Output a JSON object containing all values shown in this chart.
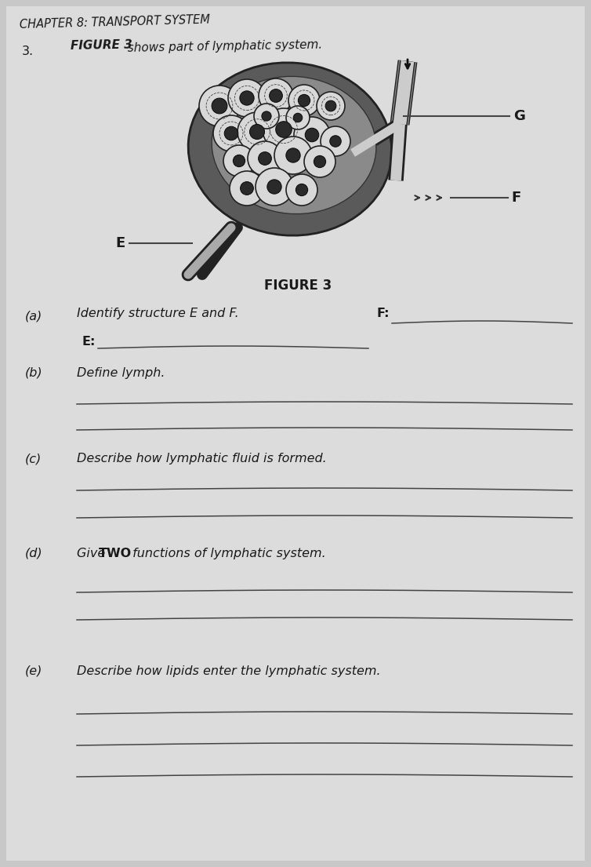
{
  "bg_color": "#c8c8c8",
  "page_bg": "#dcdcdc",
  "chapter_title": "CHAPTER 8: TRANSPORT SYSTEM",
  "question_num": "3.",
  "figure_intro_bold": "FIGURE 3",
  "figure_intro_rest": " shows part of lymphatic system.",
  "figure_label": "FIGURE 3",
  "label_G": "G",
  "label_F": "F",
  "label_E": "E",
  "q_a_label": "(a)",
  "q_a_text": "Identify structure E and F.",
  "q_a_F": "F:",
  "q_a_E": "E:",
  "q_b_label": "(b)",
  "q_b_text": "Define lymph.",
  "q_c_label": "(c)",
  "q_c_text": "Describe how lymphatic fluid is formed.",
  "q_d_label": "(d)",
  "q_d_text_pre": "Give ",
  "q_d_text_bold": "TWO",
  "q_d_text_post": " functions of lymphatic system.",
  "q_e_label": "(e)",
  "q_e_text": "Describe how lipids enter the lymphatic system.",
  "line_color": "#444444",
  "text_color": "#1a1a1a",
  "title_color": "#1a1a1a"
}
